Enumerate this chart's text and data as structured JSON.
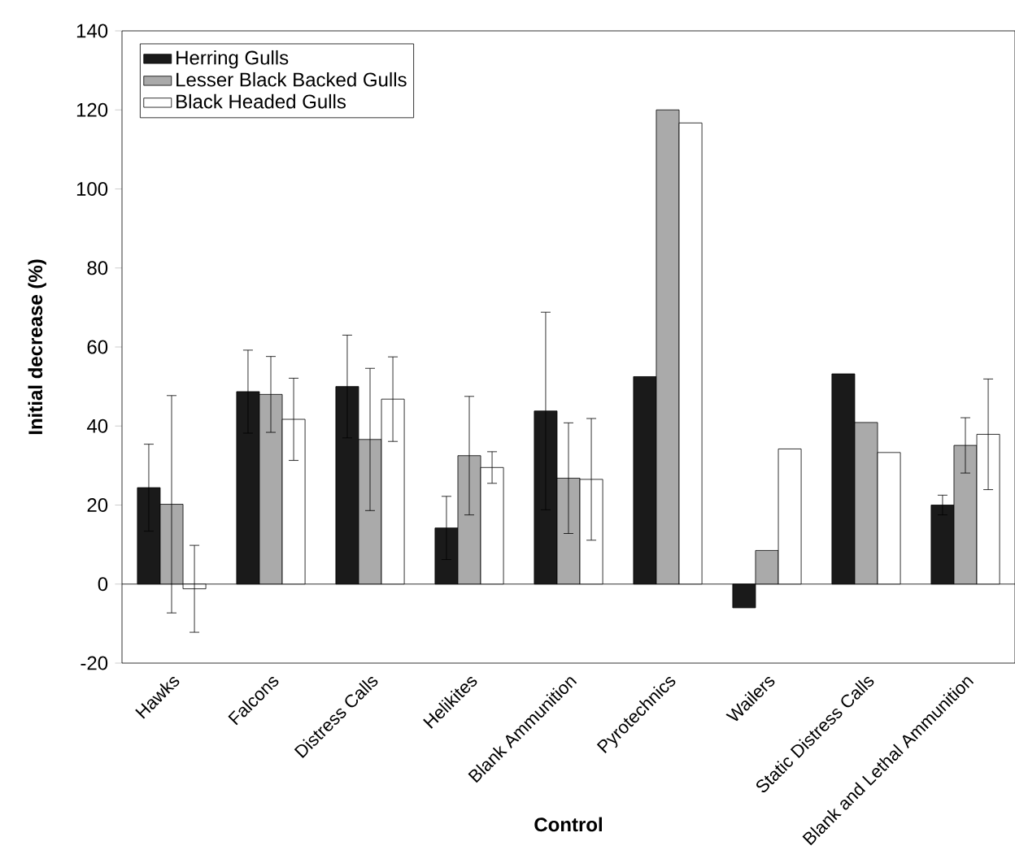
{
  "chart_data": {
    "type": "bar",
    "xlabel": "Control",
    "ylabel": "Initial decrease (%)",
    "categories": [
      "Hawks",
      "Falcons",
      "Distress Calls",
      "Helikites",
      "Blank Ammunition",
      "Pyrotechnics",
      "Wailers",
      "Static Distress Calls",
      "Blank and Lethal Ammunition"
    ],
    "series": [
      {
        "name": "Herring Gulls",
        "color": "#1a1a1a",
        "values": [
          24.4,
          48.7,
          50,
          14.2,
          43.8,
          52.5,
          -6,
          53.2,
          20
        ],
        "errors": [
          11,
          10.5,
          13,
          8,
          25,
          null,
          null,
          null,
          2.5
        ]
      },
      {
        "name": "Lesser Black Backed Gulls",
        "color": "#aaaaaa",
        "values": [
          20.2,
          48,
          36.6,
          32.5,
          26.8,
          120,
          8.5,
          40.9,
          35.1
        ],
        "errors": [
          27.5,
          9.6,
          18,
          15,
          14,
          null,
          null,
          null,
          7
        ]
      },
      {
        "name": "Black Headed Gulls",
        "color": "#ffffff",
        "values": [
          -1.2,
          41.7,
          46.8,
          29.5,
          26.5,
          116.7,
          34.2,
          33.3,
          37.9
        ],
        "errors": [
          11,
          10.4,
          10.7,
          4,
          15.4,
          null,
          null,
          null,
          14
        ]
      }
    ],
    "ylim": [
      -20,
      140
    ],
    "yticks": [
      -20,
      0,
      20,
      40,
      60,
      80,
      100,
      120,
      140
    ],
    "legend": "top left"
  }
}
